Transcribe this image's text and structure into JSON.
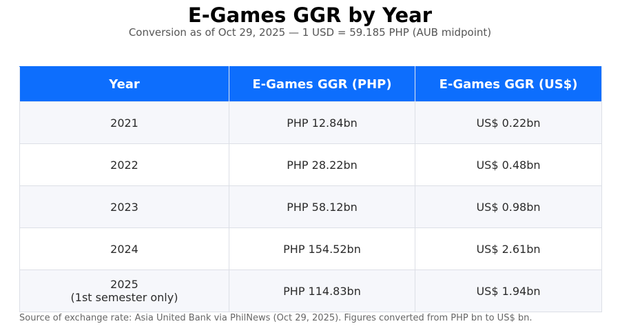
{
  "header": {
    "title": "E-Games GGR by Year",
    "subtitle": "Conversion as of Oct 29, 2025 — 1 USD = 59.185 PHP (AUB midpoint)"
  },
  "table": {
    "columns": [
      "Year",
      "E-Games GGR (PHP)",
      "E-Games GGR (US$)"
    ],
    "rows": [
      {
        "year": "2021",
        "year_note": "",
        "php": "PHP 12.84bn",
        "usd": "US$ 0.22bn"
      },
      {
        "year": "2022",
        "year_note": "",
        "php": "PHP 28.22bn",
        "usd": "US$ 0.48bn"
      },
      {
        "year": "2023",
        "year_note": "",
        "php": "PHP 58.12bn",
        "usd": "US$ 0.98bn"
      },
      {
        "year": "2024",
        "year_note": "",
        "php": "PHP 154.52bn",
        "usd": "US$ 2.61bn"
      },
      {
        "year": "2025",
        "year_note": "(1st semester only)",
        "php": "PHP 114.83bn",
        "usd": "US$ 1.94bn"
      }
    ]
  },
  "footer": {
    "note": "Source of exchange rate: Asia United Bank via PhilNews (Oct 29, 2025). Figures converted from PHP bn to US$ bn."
  },
  "colors": {
    "header_bg": "#0d6efd",
    "header_text": "#ffffff",
    "row_alt_bg": "#f6f7fb",
    "row_bg": "#ffffff",
    "border": "#dcdfe6"
  },
  "chart_data": {
    "type": "table",
    "title": "E-Games GGR by Year",
    "subtitle": "Conversion as of Oct 29, 2025 — 1 USD = 59.185 PHP (AUB midpoint)",
    "columns": [
      "Year",
      "E-Games GGR (PHP)",
      "E-Games GGR (US$)"
    ],
    "categories": [
      "2021",
      "2022",
      "2023",
      "2024",
      "2025 (1st semester only)"
    ],
    "series": [
      {
        "name": "E-Games GGR (PHP bn)",
        "values": [
          12.84,
          28.22,
          58.12,
          154.52,
          114.83
        ]
      },
      {
        "name": "E-Games GGR (US$ bn)",
        "values": [
          0.22,
          0.48,
          0.98,
          2.61,
          1.94
        ]
      }
    ],
    "exchange_rate": {
      "usd": 1,
      "php": 59.185,
      "source": "AUB midpoint",
      "date": "Oct 29, 2025"
    },
    "footnote": "Source of exchange rate: Asia United Bank via PhilNews (Oct 29, 2025). Figures converted from PHP bn to US$ bn."
  }
}
